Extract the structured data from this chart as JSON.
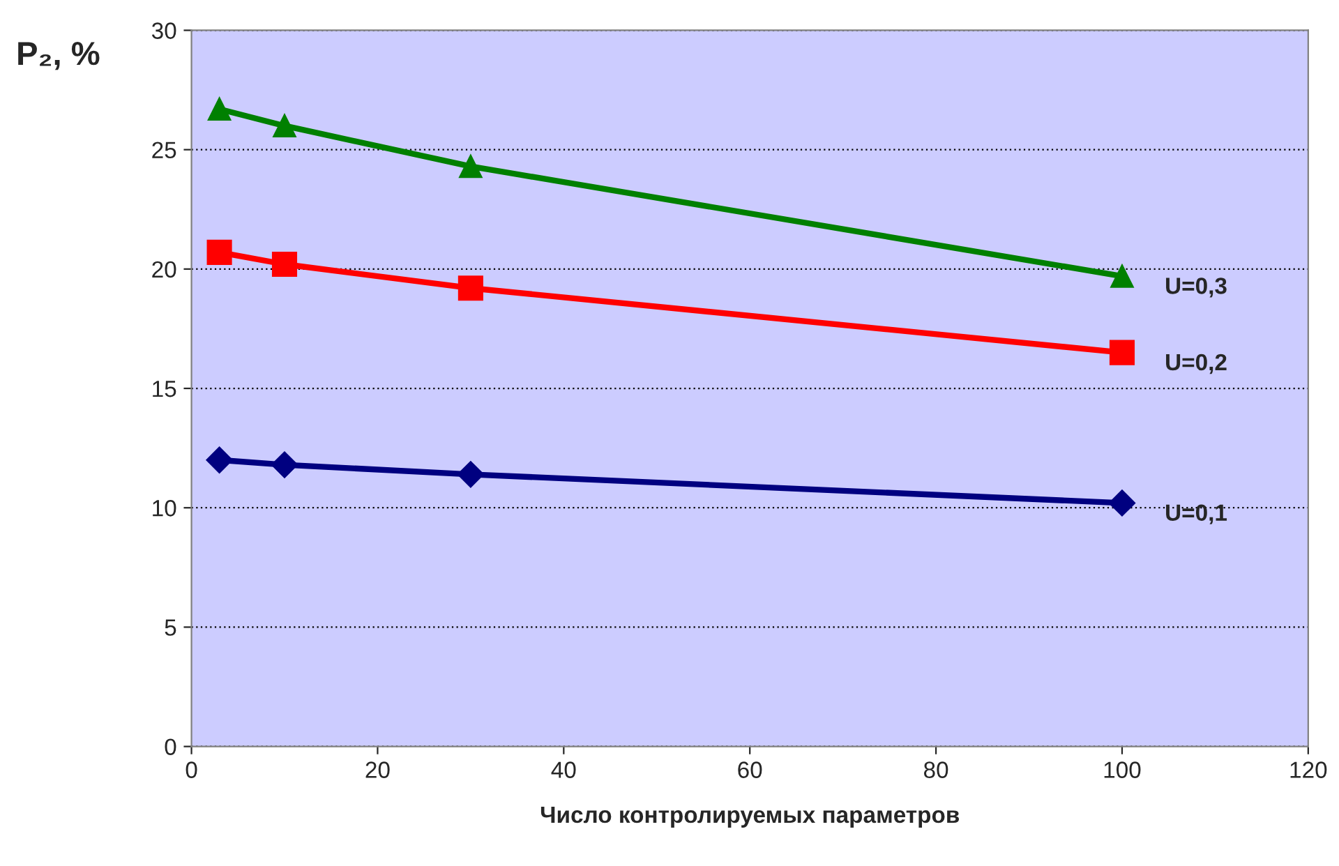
{
  "chart_data": {
    "type": "line",
    "xlabel": "Число контролируемых параметров",
    "ylabel": "P₂, %",
    "x": [
      3,
      10,
      30,
      100
    ],
    "series": [
      {
        "name": "U=0,3",
        "color": "#008000",
        "marker": "triangle",
        "values": [
          26.7,
          26.0,
          24.3,
          19.7
        ]
      },
      {
        "name": "U=0,2",
        "color": "#ff0000",
        "marker": "square",
        "values": [
          20.7,
          20.2,
          19.2,
          16.5
        ]
      },
      {
        "name": "U=0,1",
        "color": "#000080",
        "marker": "diamond",
        "values": [
          12.0,
          11.8,
          11.4,
          10.2
        ]
      }
    ],
    "xlim": [
      0,
      120
    ],
    "xticks": [
      0,
      20,
      40,
      60,
      80,
      100,
      120
    ],
    "ylim": [
      0,
      30
    ],
    "yticks": [
      0,
      5,
      10,
      15,
      20,
      25,
      30
    ],
    "grid": "y",
    "legend": false,
    "line_style": "solid"
  }
}
